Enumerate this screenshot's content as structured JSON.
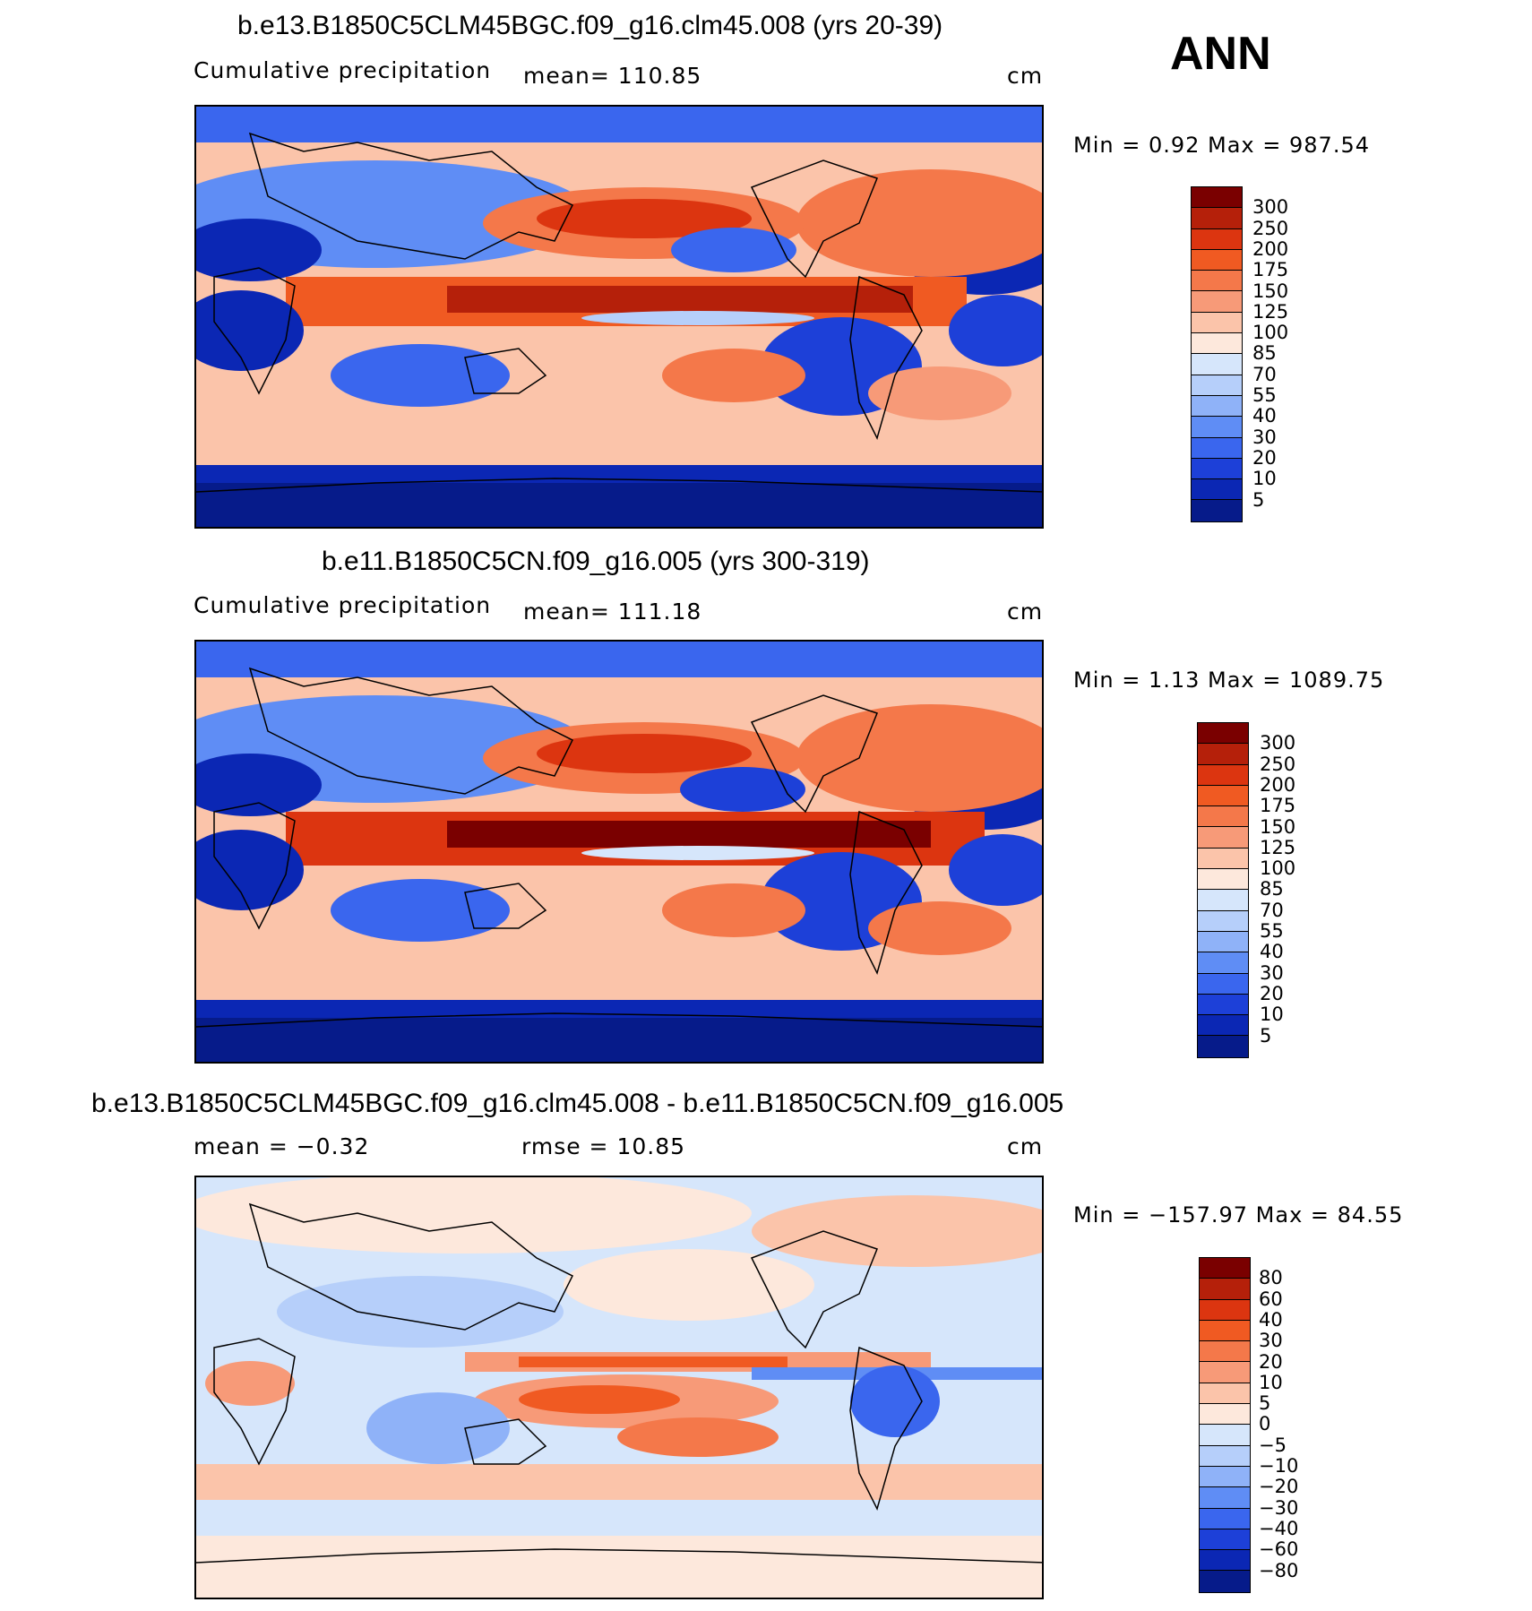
{
  "season": "ANN",
  "panels": [
    {
      "title": "b.e13.B1850C5CLM45BGC.f09_g16.clm45.008 (yrs 20-39)",
      "left_label": "Cumulative  precipitation",
      "mid_label": "mean=  110.85",
      "units": "cm",
      "minmax": "Min  =     0.92  Max  =  987.54",
      "palette": "abs"
    },
    {
      "title": "b.e11.B1850C5CN.f09_g16.005 (yrs 300-319)",
      "left_label": "Cumulative  precipitation",
      "mid_label": "mean=  111.18",
      "units": "cm",
      "minmax": "Min  =     1.13  Max  =  1089.75",
      "palette": "abs"
    },
    {
      "title": "b.e13.B1850C5CLM45BGC.f09_g16.clm45.008 - b.e11.B1850C5CN.f09_g16.005",
      "left_label": "mean  =    −0.32",
      "mid_label": "rmse  =    10.85",
      "units": "cm",
      "minmax": "Min  =  −157.97  Max  =    84.55",
      "palette": "diff"
    }
  ],
  "colorbars": {
    "abs": {
      "labels": [
        "300",
        "250",
        "200",
        "175",
        "150",
        "125",
        "100",
        "85",
        "70",
        "55",
        "40",
        "30",
        "20",
        "10",
        "5"
      ],
      "colors": [
        "#7a0000",
        "#b5200a",
        "#dc3510",
        "#f05a22",
        "#f4784a",
        "#f79a78",
        "#fbc4aa",
        "#fde8dc",
        "#d6e6fb",
        "#b6cffa",
        "#8fb2f8",
        "#5f8df5",
        "#3a66ee",
        "#1d40d8",
        "#0b27b4",
        "#061b8a"
      ]
    },
    "diff": {
      "labels": [
        "80",
        "60",
        "40",
        "30",
        "20",
        "10",
        "5",
        "0",
        "−5",
        "−10",
        "−20",
        "−30",
        "−40",
        "−60",
        "−80"
      ],
      "colors": [
        "#7a0000",
        "#b5200a",
        "#dc3510",
        "#f05a22",
        "#f4784a",
        "#f79a78",
        "#fbc4aa",
        "#fde8dc",
        "#d6e6fb",
        "#b6cffa",
        "#8fb2f8",
        "#5f8df5",
        "#3a66ee",
        "#1d40d8",
        "#0b27b4",
        "#061b8a"
      ]
    }
  },
  "chart_data": [
    {
      "type": "heatmap",
      "title": "b.e13.B1850C5CLM45BGC.f09_g16.clm45.008 (yrs 20-39)",
      "variable": "Cumulative  precipitation",
      "units": "cm",
      "mean": 110.85,
      "min": 0.92,
      "max": 987.54,
      "contour_levels": [
        5,
        10,
        20,
        30,
        40,
        55,
        70,
        85,
        100,
        125,
        150,
        175,
        200,
        250,
        300
      ]
    },
    {
      "type": "heatmap",
      "title": "b.e11.B1850C5CN.f09_g16.005 (yrs 300-319)",
      "variable": "Cumulative  precipitation",
      "units": "cm",
      "mean": 111.18,
      "min": 1.13,
      "max": 1089.75,
      "contour_levels": [
        5,
        10,
        20,
        30,
        40,
        55,
        70,
        85,
        100,
        125,
        150,
        175,
        200,
        250,
        300
      ]
    },
    {
      "type": "heatmap",
      "title": "b.e13.B1850C5CLM45BGC.f09_g16.clm45.008 - b.e11.B1850C5CN.f09_g16.005",
      "units": "cm",
      "mean": -0.32,
      "rmse": 10.85,
      "min": -157.97,
      "max": 84.55,
      "contour_levels": [
        -80,
        -60,
        -40,
        -30,
        -20,
        -10,
        -5,
        0,
        5,
        10,
        20,
        30,
        40,
        60,
        80
      ]
    }
  ]
}
